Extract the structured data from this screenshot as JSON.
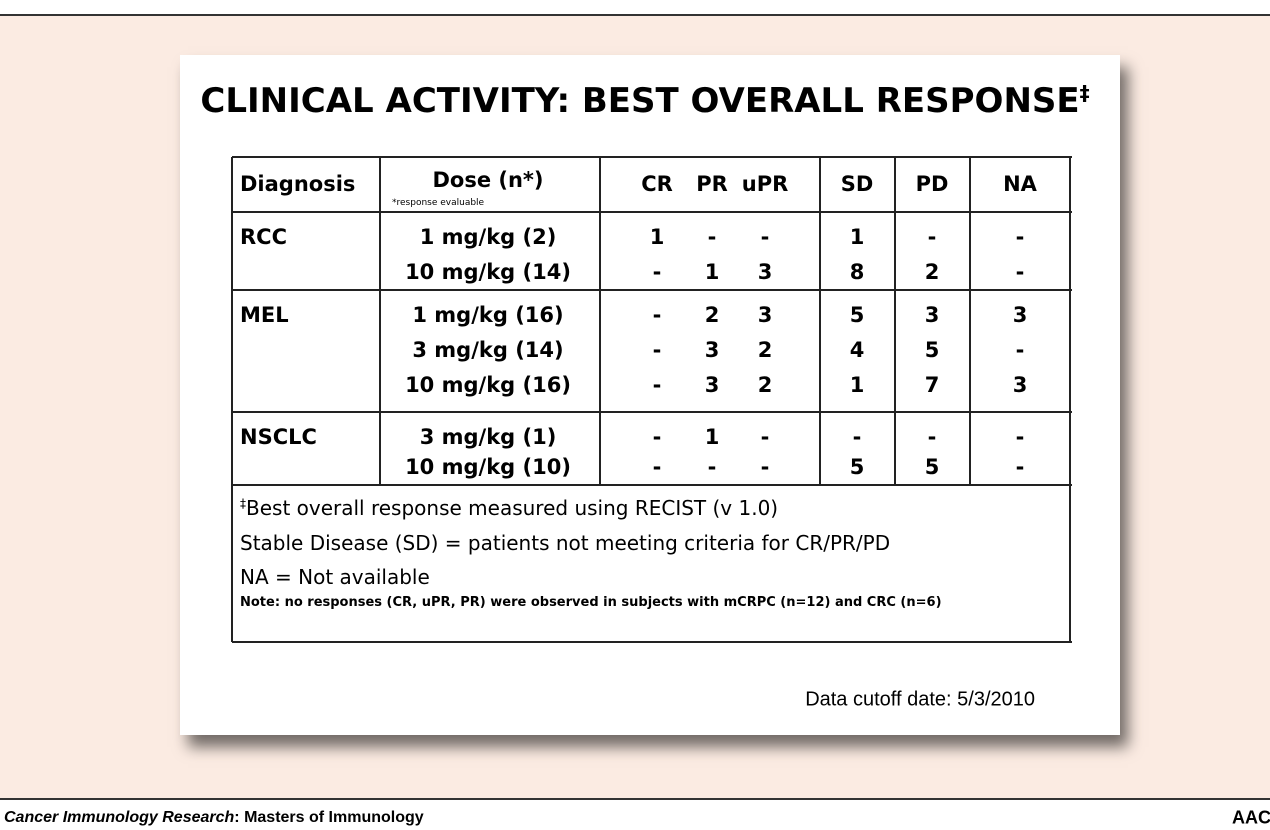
{
  "slide": {
    "title": "CLINICAL ACTIVITY: BEST OVERALL RESPONSE",
    "title_mark": "‡",
    "table": {
      "headers": [
        "Diagnosis",
        "Dose (n*)",
        "CR",
        "PR",
        "uPR",
        "SD",
        "PD",
        "NA"
      ],
      "header_note": "*response evaluable",
      "groups": [
        {
          "diagnosis": "RCC",
          "rows": [
            {
              "dose": "1 mg/kg  (2)",
              "cells": [
                1,
                "-",
                "-",
                1,
                "-",
                "-"
              ]
            },
            {
              "dose": "10 mg/kg (14)",
              "cells": [
                "-",
                1,
                3,
                8,
                2,
                "-"
              ]
            }
          ]
        },
        {
          "diagnosis": "MEL",
          "rows": [
            {
              "dose": "1 mg/kg (16)",
              "cells": [
                "-",
                2,
                3,
                5,
                3,
                3
              ]
            },
            {
              "dose": "3 mg/kg (14)",
              "cells": [
                "-",
                3,
                2,
                4,
                5,
                "-"
              ]
            },
            {
              "dose": "10 mg/kg (16)",
              "cells": [
                "-",
                3,
                2,
                1,
                7,
                3
              ]
            }
          ]
        },
        {
          "diagnosis": "NSCLC",
          "rows": [
            {
              "dose": "3 mg/kg (1)",
              "cells": [
                "-",
                1,
                "-",
                "-",
                "-",
                "-"
              ]
            },
            {
              "dose": "10 mg/kg (10)",
              "cells": [
                "-",
                "-",
                "-",
                5,
                5,
                "-"
              ]
            }
          ]
        }
      ],
      "notes": {
        "mark": "‡",
        "lines": [
          "Best overall response measured using RECIST (v 1.0)",
          "Stable Disease (SD) = patients not meeting criteria for CR/PR/PD",
          "NA = Not available"
        ],
        "small": "Note: no responses (CR, uPR, PR) were observed in subjects with mCRPC (n=12) and CRC (n=6)"
      }
    },
    "cutoff": "Data cutoff date: 5/3/2010"
  },
  "footer": {
    "journal": "Cancer Immunology Research",
    "series": ": Masters of Immunology",
    "logo": "AACR"
  }
}
